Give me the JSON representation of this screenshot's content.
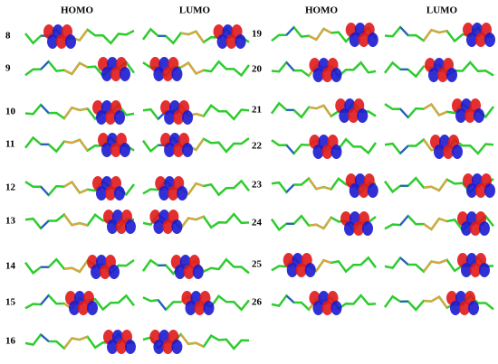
{
  "headers": {
    "left": [
      "HOMO",
      "LUMO"
    ],
    "right": [
      "HOMO",
      "LUMO"
    ]
  },
  "rows_left": [
    "8",
    "9",
    "10",
    "11",
    "12",
    "13",
    "14",
    "15",
    "16"
  ],
  "rows_right": [
    "19",
    "20",
    "21",
    "22",
    "23",
    "24",
    "25",
    "26"
  ]
}
